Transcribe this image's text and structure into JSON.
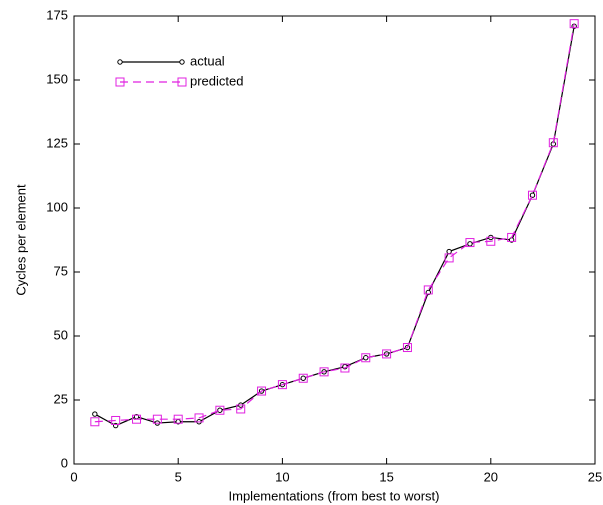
{
  "chart_data": {
    "type": "line",
    "xlabel": "Implementations (from best to worst)",
    "ylabel": "Cycles per element",
    "x": [
      1,
      2,
      3,
      4,
      5,
      6,
      7,
      8,
      9,
      10,
      11,
      12,
      13,
      14,
      15,
      16,
      17,
      18,
      19,
      20,
      21,
      22,
      23,
      24
    ],
    "series": [
      {
        "name": "actual",
        "color": "#000000",
        "dash": false,
        "marker": "circle",
        "values": [
          19.5,
          15,
          18.5,
          16,
          16.5,
          16.5,
          21,
          23,
          28.5,
          31,
          33.5,
          36,
          38,
          41.5,
          43,
          45.5,
          67,
          83,
          86,
          88.5,
          87.5,
          105,
          125,
          171
        ]
      },
      {
        "name": "predicted",
        "color": "#e020e0",
        "dash": true,
        "marker": "square",
        "values": [
          16.5,
          17,
          17.5,
          17.5,
          17.5,
          18,
          21,
          21.5,
          28.5,
          31,
          33.5,
          36,
          37.5,
          41.5,
          43,
          45.5,
          68,
          80.5,
          86.5,
          87,
          88.5,
          105,
          125.5,
          172
        ]
      }
    ],
    "xlim": [
      0,
      25
    ],
    "xticks": [
      0,
      5,
      10,
      15,
      20,
      25
    ],
    "ylim": [
      0,
      175
    ],
    "yticks": [
      0,
      25,
      50,
      75,
      100,
      125,
      150,
      175
    ],
    "grid": false,
    "legend": "upper left"
  }
}
